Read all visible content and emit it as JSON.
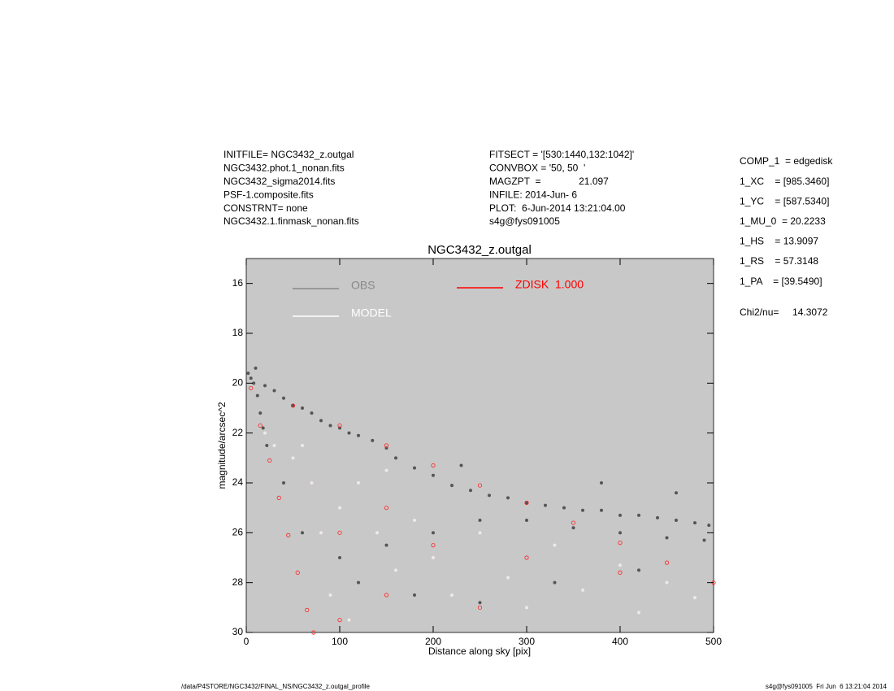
{
  "header": {
    "left": [
      "INITFILE= NGC3432_z.outgal",
      "NGC3432.phot.1_nonan.fits",
      "NGC3432_sigma2014.fits",
      "PSF-1.composite.fits",
      "CONSTRNT= none",
      "NGC3432.1.finmask_nonan.fits"
    ],
    "middle": [
      "FITSECT = '[530:1440,132:1042]'",
      "CONVBOX = '50, 50  '",
      "MAGZPT  =              21.097",
      "INFILE: 2014-Jun- 6",
      "PLOT:  6-Jun-2014 13:21:04.00",
      "s4g@fys091005"
    ]
  },
  "parameters": [
    "COMP_1  = edgedisk",
    "1_XC    = [985.3460]",
    "1_YC    = [587.5340]",
    "1_MU_0  = 20.2233",
    "1_HS    = 13.9097",
    "1_RS    = 57.3148",
    "1_PA    = [39.5490]"
  ],
  "fit": "Chi2/nu=     14.3072",
  "chart_data": {
    "type": "scatter",
    "title": "NGC3432_z.outgal",
    "x_label": "Distance along sky [pix]",
    "y_label": "magnitude/arcsec^2",
    "xlim": [
      0,
      500
    ],
    "xticks": [
      0,
      100,
      200,
      300,
      400,
      500
    ],
    "ylim": [
      15,
      30
    ],
    "yticks": [
      16,
      18,
      20,
      22,
      24,
      26,
      28,
      30
    ],
    "invert_y": true,
    "background": "#c8c8c8",
    "series": [
      {
        "name": "OBS",
        "color": "#555555",
        "legend_color": "#888888",
        "x": [
          2,
          5,
          8,
          12,
          15,
          18,
          22,
          10,
          20,
          30,
          40,
          50,
          60,
          70,
          80,
          90,
          100,
          110,
          120,
          135,
          150,
          160,
          180,
          200,
          220,
          240,
          260,
          280,
          300,
          320,
          340,
          360,
          380,
          400,
          420,
          440,
          460,
          480,
          495,
          300,
          350,
          400,
          450,
          490,
          250,
          200,
          150,
          100,
          60,
          40,
          120,
          180,
          250,
          330,
          420,
          230,
          380,
          460
        ],
        "values": [
          19.6,
          19.8,
          20.0,
          20.5,
          21.2,
          21.8,
          22.5,
          19.4,
          20.1,
          20.3,
          20.6,
          20.9,
          21.0,
          21.2,
          21.5,
          21.7,
          21.8,
          22.0,
          22.1,
          22.3,
          22.6,
          23.0,
          23.4,
          23.7,
          24.1,
          24.3,
          24.5,
          24.6,
          24.8,
          24.9,
          25.0,
          25.1,
          25.1,
          25.3,
          25.3,
          25.4,
          25.5,
          25.6,
          25.7,
          25.5,
          25.8,
          26.0,
          26.2,
          26.3,
          25.5,
          26.0,
          26.5,
          27.0,
          26.0,
          24.0,
          28.0,
          28.5,
          28.8,
          28.0,
          27.5,
          23.3,
          24.0,
          24.4
        ]
      },
      {
        "name": "MODEL",
        "color": "#f2e8e8",
        "legend_color": "#ffffff",
        "x": [
          20,
          30,
          50,
          70,
          80,
          100,
          120,
          140,
          160,
          180,
          200,
          220,
          250,
          280,
          300,
          330,
          360,
          400,
          420,
          450,
          480,
          90,
          110,
          60,
          150
        ],
        "values": [
          22.0,
          22.5,
          23.0,
          24.0,
          26.0,
          25.0,
          24.0,
          26.0,
          27.5,
          25.5,
          27.0,
          28.5,
          26.0,
          27.8,
          29.0,
          26.5,
          28.3,
          27.3,
          29.2,
          28.0,
          28.6,
          28.5,
          29.5,
          22.5,
          23.5
        ]
      },
      {
        "name": "ZDISK  1.000",
        "color": "#ff2020",
        "legend_color": "#ff0000",
        "x": [
          5,
          50,
          100,
          150,
          200,
          250,
          300,
          350,
          400,
          450,
          500,
          15,
          25,
          35,
          45,
          55,
          65,
          72,
          100,
          150,
          200,
          300,
          400,
          150,
          250,
          100
        ],
        "values": [
          20.2,
          20.9,
          21.7,
          22.5,
          23.3,
          24.1,
          24.8,
          25.6,
          26.4,
          27.2,
          28.0,
          21.7,
          23.1,
          24.6,
          26.1,
          27.6,
          29.1,
          30.0,
          26.0,
          25.0,
          26.5,
          27.0,
          27.6,
          28.5,
          29.0,
          29.5
        ]
      }
    ]
  },
  "footer": {
    "left": "/data/P4STORE/NGC3432/FINAL_NS/NGC3432_z.outgal_profile",
    "right": "s4g@fys091005  Fri Jun  6 13:21:04 2014"
  }
}
